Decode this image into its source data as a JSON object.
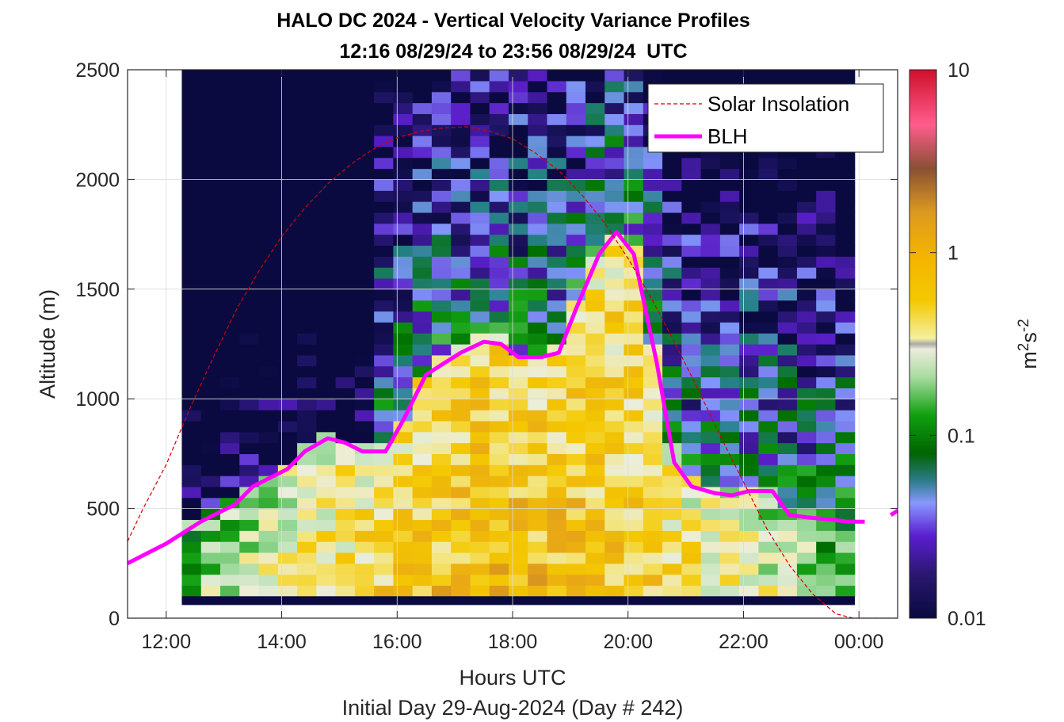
{
  "chart_data": {
    "type": "heatmap",
    "title": "HALO DC 2024 - Vertical Velocity Variance Profiles",
    "subtitle": "12:16 08/29/24 to 23:56 08/29/24  UTC",
    "xlabel": "Hours UTC",
    "xlabel2": "Initial Day 29-Aug-2024 (Day # 242)",
    "ylabel": "Altitude (m)",
    "x_tick_labels": [
      "12:00",
      "14:00",
      "16:00",
      "18:00",
      "20:00",
      "22:00",
      "00:00"
    ],
    "x_ticks_hours": [
      12,
      14,
      16,
      18,
      20,
      22,
      24
    ],
    "xlim_hours": [
      11.33,
      24.67
    ],
    "y_ticks": [
      0,
      500,
      1000,
      1500,
      2000,
      2500
    ],
    "ylim": [
      0,
      2500
    ],
    "grid": true,
    "colorbar": {
      "label": "m2s-2",
      "scale": "log",
      "range": [
        0.01,
        10
      ],
      "tick_labels": [
        "0.01",
        "0.1",
        "1",
        "10"
      ],
      "tick_values": [
        0.01,
        0.1,
        1,
        10
      ]
    },
    "heatmap_extent": {
      "start_hour": 12.27,
      "end_hour": 23.93,
      "bin_hours": 0.333,
      "bin_m": 50,
      "bottom_m": 100
    },
    "legend": {
      "position": "top-right",
      "entries": [
        {
          "name": "Solar Insolation",
          "color": "#d40000",
          "style": "dashed"
        },
        {
          "name": "BLH",
          "color": "#ff00ff",
          "style": "solid"
        }
      ]
    },
    "series": [
      {
        "name": "BLH",
        "color": "#ff00ff",
        "x": [
          11.33,
          11.7,
          12.0,
          12.3,
          12.6,
          12.9,
          13.2,
          13.5,
          13.8,
          14.1,
          14.4,
          14.8,
          15.1,
          15.4,
          15.8,
          16.1,
          16.5,
          16.8,
          17.1,
          17.5,
          17.8,
          18.1,
          18.5,
          18.8,
          19.1,
          19.5,
          19.8,
          20.1,
          20.5,
          20.8,
          21.1,
          21.5,
          21.8,
          22.1,
          22.5,
          22.8,
          23.1,
          23.5,
          23.8,
          24.1
        ],
        "y": [
          250,
          300,
          340,
          390,
          440,
          480,
          520,
          600,
          640,
          680,
          760,
          820,
          800,
          760,
          760,
          900,
          1110,
          1160,
          1210,
          1260,
          1250,
          1190,
          1190,
          1210,
          1410,
          1660,
          1760,
          1660,
          1160,
          710,
          600,
          570,
          560,
          580,
          580,
          470,
          460,
          450,
          440,
          440
        ]
      },
      {
        "name": "BLH",
        "color": "#ff00ff",
        "x": [
          24.55,
          24.67
        ],
        "y": [
          470,
          490
        ]
      },
      {
        "name": "Solar Insolation",
        "color": "#d40000",
        "x": [
          11.33,
          11.6,
          12.0,
          12.4,
          12.8,
          13.2,
          13.6,
          14.0,
          14.4,
          14.8,
          15.2,
          15.6,
          16.0,
          16.4,
          16.8,
          17.2,
          17.6,
          18.0,
          18.4,
          18.8,
          19.2,
          19.6,
          20.0,
          20.4,
          20.8,
          21.2,
          21.6,
          22.0,
          22.4,
          22.8,
          23.2,
          23.6,
          23.9,
          24.0,
          24.67
        ],
        "y": [
          350,
          500,
          700,
          950,
          1180,
          1400,
          1580,
          1740,
          1870,
          1980,
          2070,
          2140,
          2190,
          2220,
          2235,
          2240,
          2220,
          2185,
          2120,
          2040,
          1930,
          1800,
          1640,
          1460,
          1260,
          1050,
          830,
          620,
          410,
          240,
          110,
          20,
          0,
          0,
          0
        ]
      }
    ]
  }
}
